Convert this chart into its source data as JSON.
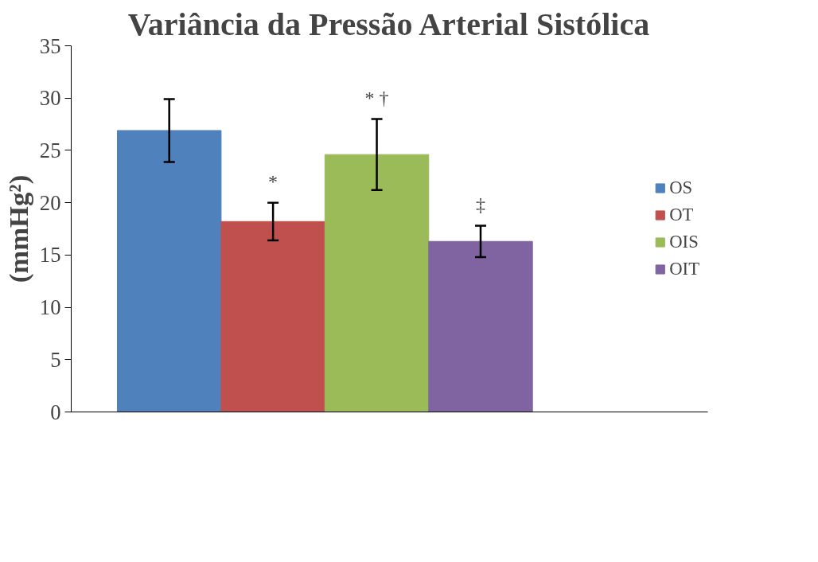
{
  "chart_data": {
    "type": "bar",
    "title": "Variância da Pressão Arterial Sistólica",
    "ylabel": "(mmHg²)",
    "categories": [
      null
    ],
    "series": [
      {
        "name": "OS",
        "color": "#4f81bd",
        "values": [
          26.9
        ],
        "errors": [
          3.0
        ]
      },
      {
        "name": "OT",
        "color": "#c0504d",
        "values": [
          18.2
        ],
        "errors": [
          1.8
        ]
      },
      {
        "name": "OIS",
        "color": "#9bbb59",
        "values": [
          24.6
        ],
        "errors": [
          3.4
        ]
      },
      {
        "name": "OIT",
        "color": "#8064a2",
        "values": [
          16.3
        ],
        "errors": [
          1.5
        ]
      }
    ],
    "annotations": [
      "*",
      "* †",
      "‡"
    ],
    "ylim": [
      0,
      35
    ],
    "yticks": [
      0,
      5,
      10,
      15,
      20,
      25,
      30,
      35
    ],
    "grid": false,
    "legend": "right"
  }
}
